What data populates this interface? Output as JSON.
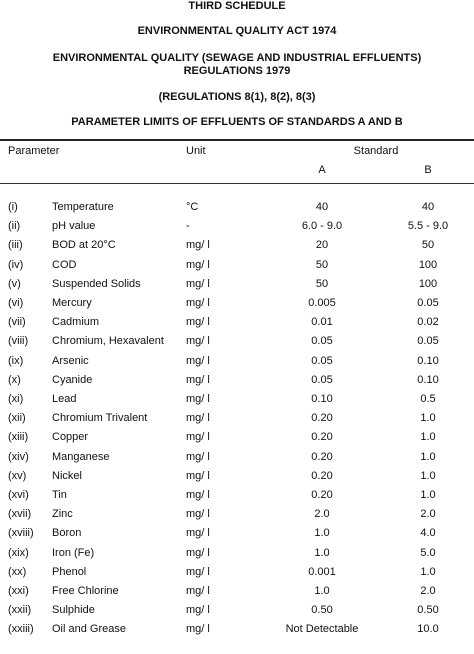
{
  "headings": {
    "schedule": "THIRD SCHEDULE",
    "act": "ENVIRONMENTAL QUALITY ACT 1974",
    "regs_line1": "ENVIRONMENTAL QUALITY (SEWAGE AND INDUSTRIAL EFFLUENTS)",
    "regs_line2": "REGULATIONS 1979",
    "regs_ref": "(REGULATIONS 8(1), 8(2), 8(3)",
    "table_title": "PARAMETER LIMITS OF EFFLUENTS OF STANDARDS A AND B"
  },
  "table": {
    "headers": {
      "parameter": "Parameter",
      "unit": "Unit",
      "standard": "Standard",
      "a": "A",
      "b": "B"
    },
    "rows": [
      {
        "num": "(i)",
        "name": "Temperature",
        "unit": "°C",
        "a": "40",
        "b": "40"
      },
      {
        "num": "(ii)",
        "name": "pH value",
        "unit": "-",
        "a": "6.0 - 9.0",
        "b": "5.5 - 9.0"
      },
      {
        "num": "(iii)",
        "name": "BOD at 20°C",
        "unit": "mg/ l",
        "a": "20",
        "b": "50"
      },
      {
        "num": "(iv)",
        "name": "COD",
        "unit": "mg/ l",
        "a": "50",
        "b": "100"
      },
      {
        "num": "(v)",
        "name": "Suspended Solids",
        "unit": "mg/ l",
        "a": "50",
        "b": "100"
      },
      {
        "num": "(vi)",
        "name": "Mercury",
        "unit": "mg/ l",
        "a": "0.005",
        "b": "0.05"
      },
      {
        "num": "(vii)",
        "name": "Cadmium",
        "unit": "mg/ l",
        "a": "0.01",
        "b": "0.02"
      },
      {
        "num": "(viii)",
        "name": "Chromium, Hexavalent",
        "unit": "mg/ l",
        "a": "0.05",
        "b": "0.05"
      },
      {
        "num": "(ix)",
        "name": "Arsenic",
        "unit": "mg/ l",
        "a": "0.05",
        "b": "0.10"
      },
      {
        "num": "(x)",
        "name": "Cyanide",
        "unit": "mg/ l",
        "a": "0.05",
        "b": "0.10"
      },
      {
        "num": "(xi)",
        "name": "Lead",
        "unit": "mg/ l",
        "a": "0.10",
        "b": "0.5"
      },
      {
        "num": "(xii)",
        "name": "Chromium Trivalent",
        "unit": "mg/ l",
        "a": "0.20",
        "b": "1.0"
      },
      {
        "num": "(xiii)",
        "name": "Copper",
        "unit": "mg/ l",
        "a": "0.20",
        "b": "1.0"
      },
      {
        "num": "(xiv)",
        "name": "Manganese",
        "unit": "mg/ l",
        "a": "0.20",
        "b": "1.0"
      },
      {
        "num": "(xv)",
        "name": "Nickel",
        "unit": "mg/ l",
        "a": "0.20",
        "b": "1.0"
      },
      {
        "num": "(xvi)",
        "name": "Tin",
        "unit": "mg/ l",
        "a": "0.20",
        "b": "1.0"
      },
      {
        "num": "(xvii)",
        "name": "Zinc",
        "unit": "mg/ l",
        "a": "2.0",
        "b": "2.0"
      },
      {
        "num": "(xviii)",
        "name": "Boron",
        "unit": "mg/ l",
        "a": "1.0",
        "b": "4.0"
      },
      {
        "num": "(xix)",
        "name": "Iron (Fe)",
        "unit": "mg/ l",
        "a": "1.0",
        "b": "5.0"
      },
      {
        "num": "(xx)",
        "name": "Phenol",
        "unit": "mg/ l",
        "a": "0.001",
        "b": "1.0"
      },
      {
        "num": "(xxi)",
        "name": "Free Chlorine",
        "unit": "mg/ l",
        "a": "1.0",
        "b": "2.0"
      },
      {
        "num": "(xxii)",
        "name": "Sulphide",
        "unit": "mg/ l",
        "a": "0.50",
        "b": "0.50"
      },
      {
        "num": "(xxiii)",
        "name": "Oil and Grease",
        "unit": "mg/ l",
        "a": "Not Detectable",
        "b": "10.0"
      }
    ]
  }
}
